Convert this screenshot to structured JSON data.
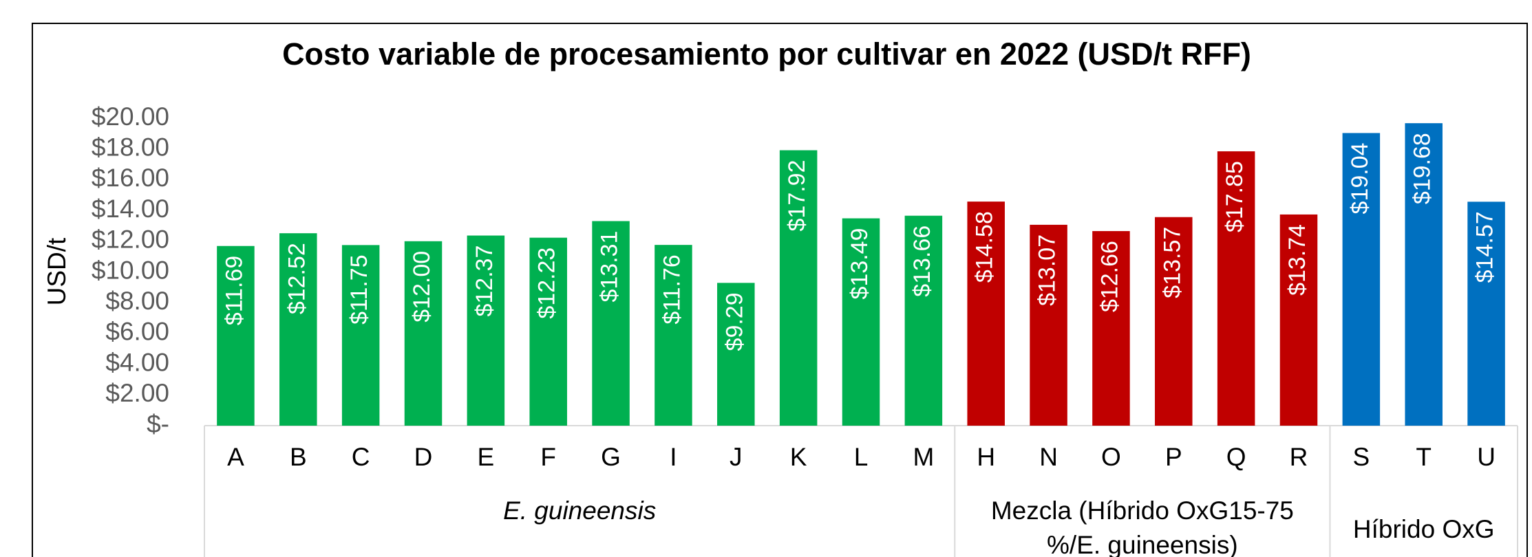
{
  "chart_data": {
    "type": "bar",
    "title": "Costo variable de procesamiento por cultivar en 2022 (USD/t RFF)",
    "y_label": "USD/t",
    "groups": [
      {
        "name": "E. guineensis",
        "color": "#00b050",
        "categories": [
          "A",
          "B",
          "C",
          "D",
          "E",
          "F",
          "G",
          "I",
          "J",
          "K",
          "L",
          "M"
        ],
        "values": [
          11.69,
          12.52,
          11.75,
          12.0,
          12.37,
          12.23,
          13.31,
          11.76,
          9.29,
          17.92,
          13.49,
          13.66
        ],
        "value_labels": [
          "$11.69",
          "$12.52",
          "$11.75",
          "$12.00",
          "$12.37",
          "$12.23",
          "$13.31",
          "$11.76",
          "$9.29",
          "$17.92",
          "$13.49",
          "$13.66"
        ]
      },
      {
        "name": "Mezcla (Híbrido OxG15-75 %/E. guineensis)",
        "color": "#c00000",
        "categories": [
          "H",
          "N",
          "O",
          "P",
          "Q",
          "R"
        ],
        "values": [
          14.58,
          13.07,
          12.66,
          13.57,
          17.85,
          13.74
        ],
        "value_labels": [
          "$14.58",
          "$13.07",
          "$12.66",
          "$13.57",
          "$17.85",
          "$13.74"
        ]
      },
      {
        "name": "Híbrido OxG",
        "color": "#0070c0",
        "categories": [
          "S",
          "T",
          "U"
        ],
        "values": [
          19.04,
          19.68,
          14.57
        ],
        "value_labels": [
          "$19.04",
          "$19.68",
          "$14.57"
        ]
      }
    ],
    "ylim": [
      0,
      20
    ],
    "yticks": [
      {
        "value": 0,
        "label": "$-"
      },
      {
        "value": 2,
        "label": "$2.00"
      },
      {
        "value": 4,
        "label": "$4.00"
      },
      {
        "value": 6,
        "label": "$6.00"
      },
      {
        "value": 8,
        "label": "$8.00"
      },
      {
        "value": 10,
        "label": "$10.00"
      },
      {
        "value": 12,
        "label": "$12.00"
      },
      {
        "value": 14,
        "label": "$14.00"
      },
      {
        "value": 16,
        "label": "$16.00"
      },
      {
        "value": 18,
        "label": "$18.00"
      },
      {
        "value": 20,
        "label": "$20.00"
      }
    ],
    "grid": false
  }
}
